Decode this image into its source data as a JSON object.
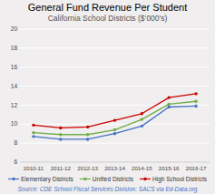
{
  "chart_data": {
    "type": "line",
    "title": "General Fund Revenue Per Student",
    "subtitle": "California School Districts ($’000's)",
    "source": "Source: CDE School Fiscal Services Division: SACS via Ed-Data.org",
    "categories": [
      "2010-11",
      "2011-12",
      "2012-13",
      "2013-14",
      "2014-15",
      "2015-16",
      "2016-17"
    ],
    "series": [
      {
        "name": "Elementary Districts",
        "color": "#4472c4",
        "marker": "circle",
        "values": [
          8.7,
          8.4,
          8.4,
          9.0,
          9.8,
          11.8,
          11.9
        ]
      },
      {
        "name": "Unified Districts",
        "color": "#70ad47",
        "marker": "circle",
        "values": [
          9.1,
          8.9,
          8.9,
          9.4,
          10.5,
          12.1,
          12.4
        ]
      },
      {
        "name": "High School Districts",
        "color": "#cc0000",
        "marker": "circle",
        "values": [
          9.9,
          9.6,
          9.7,
          10.4,
          11.1,
          12.8,
          13.2
        ]
      }
    ],
    "ylim": [
      6,
      20
    ],
    "yticks": [
      6,
      8,
      10,
      12,
      14,
      16,
      18,
      20
    ],
    "grid": true,
    "legend": "bottom"
  }
}
